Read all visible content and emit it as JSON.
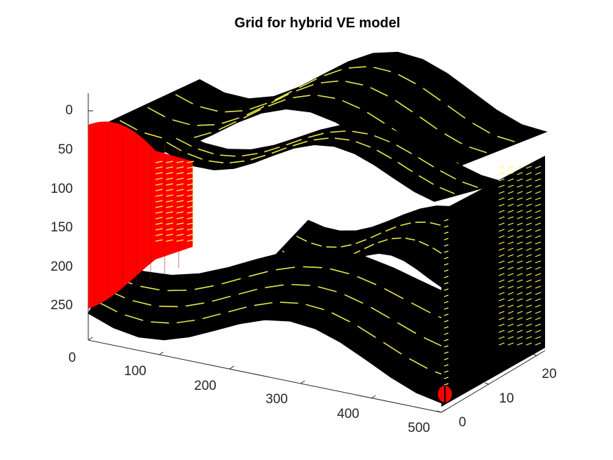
{
  "chart_data": {
    "type": "surface-3d",
    "title": "Grid for hybrid VE model",
    "xlabel": "",
    "ylabel": "",
    "zlabel": "",
    "x_ticks": [
      "0",
      "100",
      "200",
      "300",
      "400",
      "500"
    ],
    "y_ticks": [
      "0",
      "10",
      "20"
    ],
    "z_ticks": [
      "0",
      "50",
      "100",
      "150",
      "200",
      "250"
    ],
    "xlim": [
      0,
      500
    ],
    "ylim": [
      0,
      22
    ],
    "zlim": [
      -20,
      260
    ],
    "z_direction": "reverse",
    "grid": false,
    "layers": [
      {
        "name": "",
        "top_depth_at_x0": 10,
        "bottom_depth_at_x0": 260,
        "face_color": "#ffff55",
        "edge_color": "#000000"
      }
    ],
    "highlighted_cells": {
      "color": "#ff0000",
      "location": "x=0 face, full height"
    },
    "colors": {
      "background": "#ffffff",
      "cell_face": "#ffff55",
      "cell_edge": "#000000",
      "highlight": "#ff0000",
      "axis": "#262626"
    }
  }
}
